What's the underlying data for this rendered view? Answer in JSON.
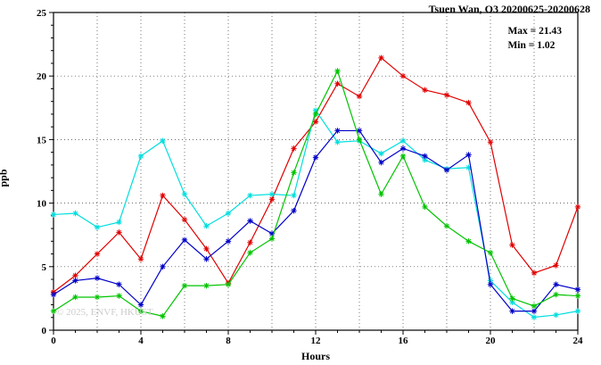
{
  "title": "Tsuen Wan, O3 20200625-20200628",
  "annotations": {
    "max_label": "Max = 21.43",
    "min_label": "Min =  1.02"
  },
  "watermark": "© 2025, ENVF, HKUST",
  "chart_data": {
    "type": "line",
    "title": "Tsuen Wan, O3 20200625-20200628",
    "xlabel": "Hours",
    "ylabel": "ppb",
    "xlim": [
      0,
      24
    ],
    "ylim": [
      0,
      25
    ],
    "xticks": [
      0,
      4,
      8,
      12,
      16,
      20,
      24
    ],
    "yticks": [
      0,
      5,
      10,
      15,
      20,
      25
    ],
    "grid": {
      "style": "dotted",
      "x_interval": 2,
      "y_interval": 5
    },
    "legend": "none",
    "marker": "asterisk",
    "max": 21.43,
    "min": 1.02,
    "x": [
      0,
      1,
      2,
      3,
      4,
      5,
      6,
      7,
      8,
      9,
      10,
      11,
      12,
      13,
      14,
      15,
      16,
      17,
      18,
      19,
      20,
      21,
      22,
      23,
      24
    ],
    "series": [
      {
        "name": "series-red",
        "color": "#e10000",
        "values": [
          3.0,
          4.3,
          6.0,
          7.7,
          5.6,
          10.6,
          8.7,
          6.4,
          3.7,
          6.9,
          10.3,
          14.3,
          16.4,
          19.4,
          18.4,
          21.43,
          20.0,
          18.9,
          18.5,
          17.9,
          14.8,
          6.7,
          4.5,
          5.1,
          9.7
        ]
      },
      {
        "name": "series-cyan",
        "color": "#00dede",
        "values": [
          9.1,
          9.2,
          8.1,
          8.5,
          13.7,
          14.9,
          10.7,
          8.2,
          9.2,
          10.6,
          10.7,
          10.6,
          17.3,
          14.8,
          14.9,
          13.9,
          14.9,
          13.4,
          12.7,
          12.8,
          3.9,
          2.2,
          1.02,
          1.2,
          1.5
        ]
      },
      {
        "name": "series-blue",
        "color": "#0000c8",
        "values": [
          2.8,
          3.9,
          4.1,
          3.6,
          2.0,
          5.0,
          7.1,
          5.6,
          7.0,
          8.6,
          7.6,
          9.4,
          13.6,
          15.7,
          15.7,
          13.2,
          14.3,
          13.7,
          12.6,
          13.8,
          3.6,
          1.5,
          1.5,
          3.6,
          3.2
        ]
      },
      {
        "name": "series-green",
        "color": "#00c400",
        "values": [
          1.5,
          2.6,
          2.6,
          2.7,
          1.5,
          1.1,
          3.5,
          3.5,
          3.6,
          6.1,
          7.2,
          12.4,
          17.0,
          20.4,
          15.0,
          10.7,
          13.7,
          9.7,
          8.2,
          7.0,
          6.1,
          2.5,
          1.9,
          2.8,
          2.7
        ]
      }
    ]
  }
}
